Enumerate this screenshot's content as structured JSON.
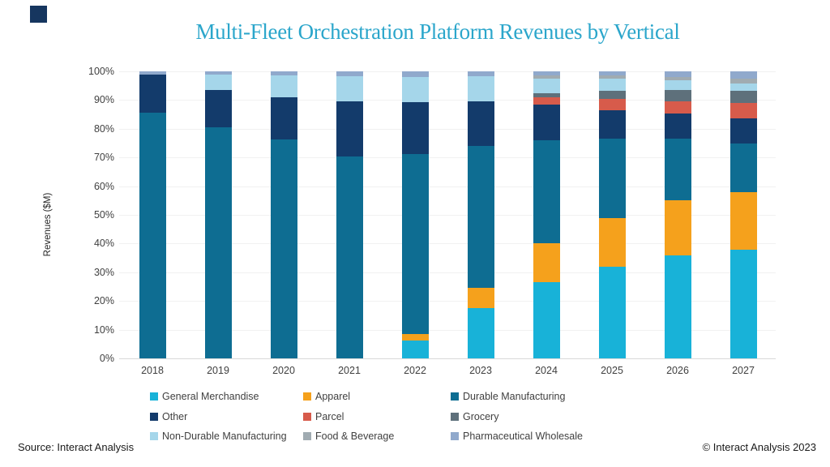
{
  "page": {
    "background": "#ffffff"
  },
  "brand": {
    "accent_square_color": "#16365F"
  },
  "chart": {
    "title": "Multi-Fleet Orchestration Platform Revenues by Vertical",
    "title_color": "#2BA6CB",
    "y_axis_title": "Revenues ($M)"
  },
  "chart_data": {
    "type": "bar",
    "stacked": true,
    "units": "percent of total",
    "title": "Multi-Fleet Orchestration Platform Revenues by Vertical",
    "xlabel": "",
    "ylabel": "Revenues ($M)",
    "ylim": [
      0,
      100
    ],
    "y_tick_labels": [
      "0%",
      "10%",
      "20%",
      "30%",
      "40%",
      "50%",
      "60%",
      "70%",
      "80%",
      "90%",
      "100%"
    ],
    "grid": true,
    "legend_position": "bottom",
    "categories": [
      "2018",
      "2019",
      "2020",
      "2021",
      "2022",
      "2023",
      "2024",
      "2025",
      "2026",
      "2027"
    ],
    "series": [
      {
        "name": "General Merchandise",
        "color": "#18B2D8",
        "values": [
          0,
          0,
          0,
          0,
          6.2,
          17.5,
          26.5,
          32.0,
          36.0,
          37.9
        ]
      },
      {
        "name": "Apparel",
        "color": "#F5A11C",
        "values": [
          0,
          0,
          0,
          0,
          2.4,
          7.1,
          13.5,
          17.0,
          19.2,
          20.0
        ]
      },
      {
        "name": "Durable Manufacturing",
        "color": "#0E6D92",
        "values": [
          85.5,
          80.5,
          76.2,
          70.3,
          62.6,
          49.4,
          36.0,
          27.5,
          21.4,
          17.1
        ]
      },
      {
        "name": "Other",
        "color": "#133B6B",
        "values": [
          13.4,
          12.9,
          14.8,
          19.3,
          18.0,
          15.6,
          12.5,
          10.0,
          8.7,
          8.7
        ]
      },
      {
        "name": "Parcel",
        "color": "#D75B4B",
        "values": [
          0,
          0,
          0,
          0,
          0,
          0,
          2.5,
          4.0,
          4.4,
          5.4
        ]
      },
      {
        "name": "Grocery",
        "color": "#5E707B",
        "values": [
          0,
          0,
          0,
          0,
          0,
          0,
          1.5,
          2.75,
          3.8,
          4.2
        ]
      },
      {
        "name": "Non-Durable Manufacturing",
        "color": "#A5D6EA",
        "values": [
          0,
          5.5,
          7.6,
          8.7,
          8.9,
          8.7,
          5.0,
          4.25,
          3.4,
          2.6
        ]
      },
      {
        "name": "Food & Beverage",
        "color": "#A0ABB1",
        "values": [
          0,
          0,
          0,
          0,
          0,
          0,
          1.0,
          1.0,
          1.1,
          1.6
        ]
      },
      {
        "name": "Pharmaceutical Wholesale",
        "color": "#90A9CC",
        "values": [
          1.1,
          1.1,
          1.4,
          1.7,
          1.9,
          1.7,
          1.5,
          1.5,
          2.0,
          2.5
        ]
      }
    ]
  },
  "footer": {
    "source": "Source: Interact Analysis",
    "copyright": "© Interact Analysis 2023"
  }
}
